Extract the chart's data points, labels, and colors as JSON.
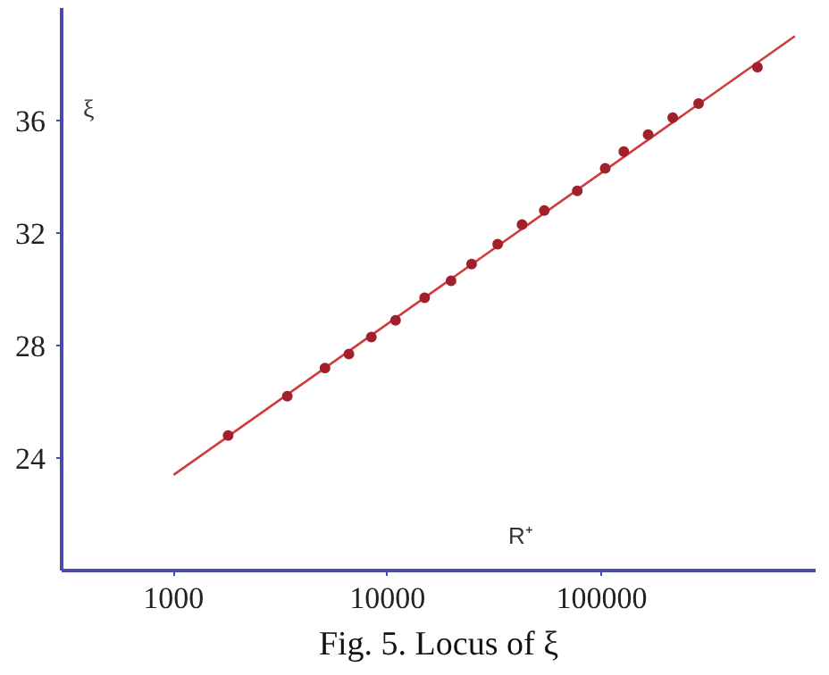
{
  "chart_data": {
    "type": "scatter",
    "title": "Fig. 5. Locus of ξ",
    "xlabel": "R⁺",
    "ylabel": "ξ",
    "log": "x",
    "grid": false,
    "xlim": [
      300,
      1000000
    ],
    "xticks": [
      1000,
      10000,
      100000
    ],
    "ylim": [
      20,
      40
    ],
    "yticks": [
      24,
      28,
      32,
      36
    ],
    "series": [
      {
        "type": "line",
        "color": "#d03a3a",
        "x": [
          1000,
          800000
        ],
        "values": [
          23.4,
          39.0
        ]
      },
      {
        "marker": "circle",
        "color": "#a0202c",
        "x": [
          1800,
          3400,
          5100,
          6600,
          8400,
          10900,
          14900,
          19800,
          24700,
          32700,
          42500,
          54000,
          77000,
          104000,
          127000,
          165000,
          215000,
          284000,
          535000
        ],
        "values": [
          24.8,
          26.2,
          27.2,
          27.7,
          28.3,
          28.9,
          29.7,
          30.3,
          30.9,
          31.6,
          32.3,
          32.8,
          33.5,
          34.3,
          34.9,
          35.5,
          36.1,
          36.6,
          37.9
        ]
      }
    ]
  }
}
